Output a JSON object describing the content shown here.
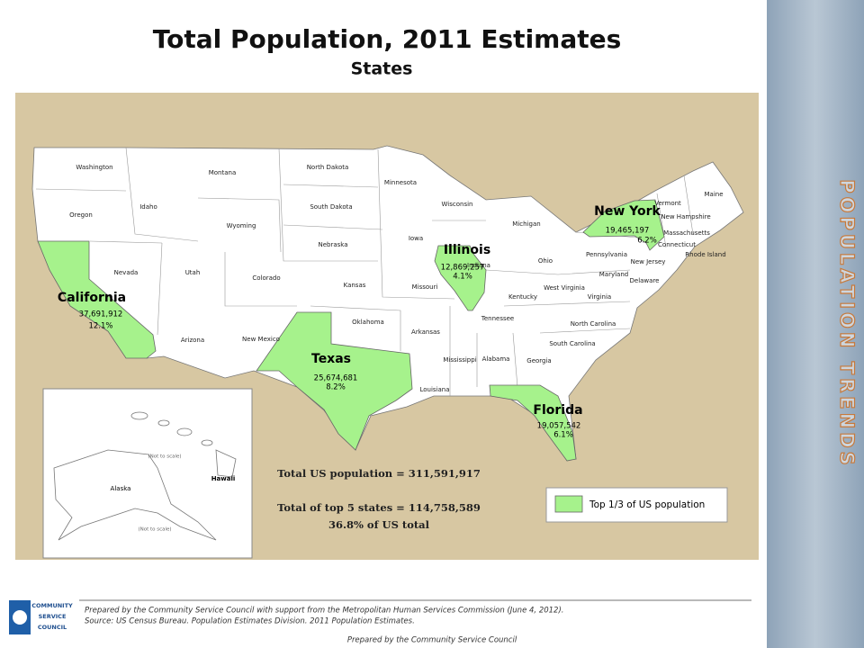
{
  "header": {
    "title": "Total Population, 2011 Estimates",
    "subtitle": "States"
  },
  "states": [
    "Washington",
    "Oregon",
    "Idaho",
    "Montana",
    "Wyoming",
    "Nevada",
    "Utah",
    "Colorado",
    "Arizona",
    "New Mexico",
    "North Dakota",
    "South Dakota",
    "Nebraska",
    "Kansas",
    "Oklahoma",
    "Minnesota",
    "Iowa",
    "Missouri",
    "Arkansas",
    "Louisiana",
    "Wisconsin",
    "Michigan",
    "Indiana",
    "Ohio",
    "Kentucky",
    "Tennessee",
    "Mississippi",
    "Alabama",
    "Georgia",
    "South Carolina",
    "North Carolina",
    "Virginia",
    "West Virginia",
    "Pennsylvania",
    "New Jersey",
    "Delaware",
    "Maryland",
    "Vermont",
    "New Hampshire",
    "Massachusetts",
    "Connecticut",
    "Rhode Island",
    "Maine"
  ],
  "highlighted": [
    {
      "name": "California",
      "population": "37,691,912",
      "share": "12.1%"
    },
    {
      "name": "Texas",
      "population": "25,674,681",
      "share": "8.2%"
    },
    {
      "name": "Illinois",
      "population": "12,869,257",
      "share": "4.1%"
    },
    {
      "name": "New York",
      "population": "19,465,197",
      "share": "6.2%"
    },
    {
      "name": "Florida",
      "population": "19,057,542",
      "share": "6.1%"
    }
  ],
  "insets": {
    "alaska": "Alaska",
    "hawaii": "Hawaii",
    "hawaii_note": "(Not to scale)",
    "alaska_note": "(Not to scale)"
  },
  "summary": {
    "total": "Total US population = 311,591,917",
    "top5": "Total of top 5 states = 114,758,589",
    "top5_share": "36.8% of US total"
  },
  "legend": {
    "label": "Top 1/3 of US population",
    "color": "#a6f28c"
  },
  "sidebar": {
    "title": "POPULATION TRENDS"
  },
  "logo": {
    "line1": "COMMUNITY",
    "line2": "SERVICE",
    "line3": "COUNCIL"
  },
  "footer": {
    "line1": "Prepared by the Community Service Council with support from the Metropolitan Human Services Commission (June 4, 2012).",
    "line2": "Source:  US Census Bureau. Population Estimates Division. 2011 Population Estimates.",
    "credit": "Prepared by the Community Service Council"
  }
}
